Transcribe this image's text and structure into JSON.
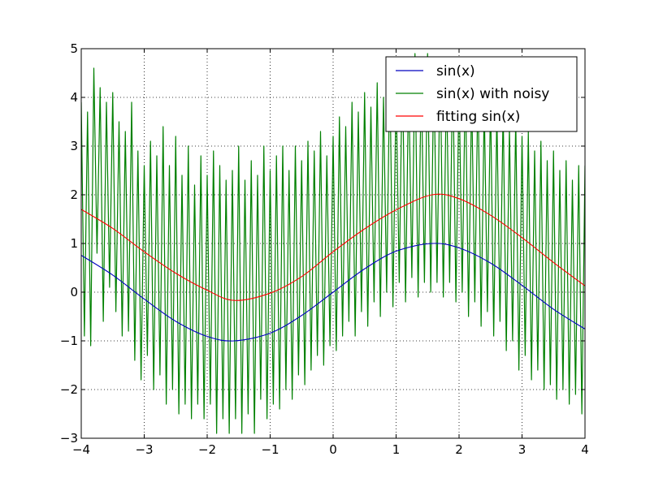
{
  "chart_data": {
    "type": "line",
    "title": "",
    "xlabel": "",
    "ylabel": "",
    "xlim": [
      -4,
      4
    ],
    "ylim": [
      -3,
      5
    ],
    "grid": true,
    "x_ticks": [
      -4,
      -3,
      -2,
      -1,
      0,
      1,
      2,
      3,
      4
    ],
    "y_ticks": [
      -3,
      -2,
      -1,
      0,
      1,
      2,
      3,
      4,
      5
    ],
    "x_tick_labels": [
      "−4",
      "−3",
      "−2",
      "−1",
      "0",
      "1",
      "2",
      "3",
      "4"
    ],
    "y_tick_labels": [
      "−3",
      "−2",
      "−1",
      "0",
      "1",
      "2",
      "3",
      "4",
      "5"
    ],
    "legend_position": "top-right",
    "series": [
      {
        "name": "sin(x)",
        "color": "#0000bf",
        "style": "smooth",
        "points": [
          [
            -4.0,
            0.757
          ],
          [
            -3.5,
            0.351
          ],
          [
            -3.0,
            -0.141
          ],
          [
            -2.5,
            -0.598
          ],
          [
            -2.0,
            -0.909
          ],
          [
            -1.57,
            -1.0
          ],
          [
            -1.0,
            -0.841
          ],
          [
            -0.5,
            -0.479
          ],
          [
            0.0,
            0.0
          ],
          [
            0.5,
            0.479
          ],
          [
            1.0,
            0.841
          ],
          [
            1.57,
            1.0
          ],
          [
            2.0,
            0.909
          ],
          [
            2.5,
            0.598
          ],
          [
            3.0,
            0.141
          ],
          [
            3.5,
            -0.351
          ],
          [
            4.0,
            -0.757
          ]
        ]
      },
      {
        "name": "sin(x) with noisy",
        "color": "#008000",
        "style": "noisy",
        "points": [
          [
            -4.0,
            3.9
          ],
          [
            -3.95,
            -0.9
          ],
          [
            -3.9,
            3.7
          ],
          [
            -3.85,
            -1.1
          ],
          [
            -3.8,
            4.6
          ],
          [
            -3.75,
            0.8
          ],
          [
            -3.7,
            4.2
          ],
          [
            -3.65,
            -0.6
          ],
          [
            -3.6,
            3.9
          ],
          [
            -3.55,
            0.1
          ],
          [
            -3.5,
            4.1
          ],
          [
            -3.45,
            -0.4
          ],
          [
            -3.4,
            3.5
          ],
          [
            -3.35,
            -0.9
          ],
          [
            -3.3,
            3.3
          ],
          [
            -3.25,
            -0.8
          ],
          [
            -3.2,
            3.9
          ],
          [
            -3.15,
            -1.4
          ],
          [
            -3.1,
            2.9
          ],
          [
            -3.05,
            -1.8
          ],
          [
            -3.0,
            2.6
          ],
          [
            -2.95,
            -1.3
          ],
          [
            -2.9,
            3.1
          ],
          [
            -2.85,
            -2.0
          ],
          [
            -2.8,
            2.8
          ],
          [
            -2.75,
            -1.7
          ],
          [
            -2.7,
            3.4
          ],
          [
            -2.65,
            -2.3
          ],
          [
            -2.6,
            2.6
          ],
          [
            -2.55,
            -2.0
          ],
          [
            -2.5,
            3.2
          ],
          [
            -2.45,
            -2.5
          ],
          [
            -2.4,
            2.4
          ],
          [
            -2.35,
            -2.3
          ],
          [
            -2.3,
            3.0
          ],
          [
            -2.25,
            -2.6
          ],
          [
            -2.2,
            2.2
          ],
          [
            -2.15,
            -2.3
          ],
          [
            -2.1,
            2.8
          ],
          [
            -2.05,
            -2.6
          ],
          [
            -2.0,
            2.4
          ],
          [
            -1.95,
            -2.3
          ],
          [
            -1.9,
            2.9
          ],
          [
            -1.85,
            -2.9
          ],
          [
            -1.8,
            2.6
          ],
          [
            -1.75,
            -2.6
          ],
          [
            -1.7,
            2.3
          ],
          [
            -1.65,
            -2.9
          ],
          [
            -1.6,
            2.5
          ],
          [
            -1.55,
            -2.6
          ],
          [
            -1.5,
            3.0
          ],
          [
            -1.45,
            -2.9
          ],
          [
            -1.4,
            2.3
          ],
          [
            -1.35,
            -2.5
          ],
          [
            -1.3,
            2.7
          ],
          [
            -1.25,
            -2.9
          ],
          [
            -1.2,
            2.4
          ],
          [
            -1.15,
            -2.2
          ],
          [
            -1.1,
            3.0
          ],
          [
            -1.05,
            -2.6
          ],
          [
            -1.0,
            2.5
          ],
          [
            -0.95,
            -2.3
          ],
          [
            -0.9,
            2.8
          ],
          [
            -0.85,
            -2.4
          ],
          [
            -0.8,
            3.0
          ],
          [
            -0.75,
            -2.0
          ],
          [
            -0.7,
            2.5
          ],
          [
            -0.65,
            -2.2
          ],
          [
            -0.6,
            3.0
          ],
          [
            -0.55,
            -1.7
          ],
          [
            -0.5,
            2.7
          ],
          [
            -0.45,
            -1.9
          ],
          [
            -0.4,
            3.1
          ],
          [
            -0.35,
            -1.6
          ],
          [
            -0.3,
            2.9
          ],
          [
            -0.25,
            -1.3
          ],
          [
            -0.2,
            3.3
          ],
          [
            -0.15,
            -1.5
          ],
          [
            -0.1,
            2.8
          ],
          [
            -0.05,
            -1.1
          ],
          [
            0.0,
            3.2
          ],
          [
            0.05,
            -1.2
          ],
          [
            0.1,
            3.6
          ],
          [
            0.15,
            -0.9
          ],
          [
            0.2,
            3.4
          ],
          [
            0.25,
            -0.6
          ],
          [
            0.3,
            3.9
          ],
          [
            0.35,
            -0.9
          ],
          [
            0.4,
            3.7
          ],
          [
            0.45,
            -0.4
          ],
          [
            0.5,
            4.1
          ],
          [
            0.55,
            -0.7
          ],
          [
            0.6,
            3.8
          ],
          [
            0.65,
            -0.2
          ],
          [
            0.7,
            4.3
          ],
          [
            0.75,
            -0.5
          ],
          [
            0.8,
            4.0
          ],
          [
            0.85,
            0.0
          ],
          [
            0.9,
            4.6
          ],
          [
            0.95,
            -0.3
          ],
          [
            1.0,
            4.2
          ],
          [
            1.05,
            0.2
          ],
          [
            1.1,
            4.8
          ],
          [
            1.15,
            -0.2
          ],
          [
            1.2,
            4.4
          ],
          [
            1.25,
            0.3
          ],
          [
            1.3,
            4.9
          ],
          [
            1.35,
            -0.1
          ],
          [
            1.4,
            4.5
          ],
          [
            1.45,
            0.2
          ],
          [
            1.5,
            4.9
          ],
          [
            1.55,
            0.0
          ],
          [
            1.6,
            4.6
          ],
          [
            1.65,
            0.2
          ],
          [
            1.7,
            4.8
          ],
          [
            1.75,
            -0.1
          ],
          [
            1.8,
            4.4
          ],
          [
            1.85,
            0.2
          ],
          [
            1.9,
            4.7
          ],
          [
            1.95,
            -0.2
          ],
          [
            2.0,
            4.3
          ],
          [
            2.05,
            0.0
          ],
          [
            2.1,
            4.5
          ],
          [
            2.15,
            -0.5
          ],
          [
            2.2,
            4.1
          ],
          [
            2.25,
            -0.2
          ],
          [
            2.3,
            4.3
          ],
          [
            2.35,
            -0.7
          ],
          [
            2.4,
            3.9
          ],
          [
            2.45,
            -0.4
          ],
          [
            2.5,
            4.0
          ],
          [
            2.55,
            -0.9
          ],
          [
            2.6,
            3.7
          ],
          [
            2.65,
            -0.6
          ],
          [
            2.7,
            3.8
          ],
          [
            2.75,
            -1.2
          ],
          [
            2.8,
            3.4
          ],
          [
            2.85,
            -1.0
          ],
          [
            2.9,
            3.6
          ],
          [
            2.95,
            -1.6
          ],
          [
            3.0,
            3.2
          ],
          [
            3.05,
            -1.3
          ],
          [
            3.1,
            3.3
          ],
          [
            3.15,
            -1.8
          ],
          [
            3.2,
            2.9
          ],
          [
            3.25,
            -1.6
          ],
          [
            3.3,
            3.1
          ],
          [
            3.35,
            -2.0
          ],
          [
            3.4,
            2.7
          ],
          [
            3.45,
            -1.9
          ],
          [
            3.5,
            2.9
          ],
          [
            3.55,
            -2.2
          ],
          [
            3.6,
            2.5
          ],
          [
            3.65,
            -2.0
          ],
          [
            3.7,
            2.7
          ],
          [
            3.75,
            -2.3
          ],
          [
            3.8,
            2.3
          ],
          [
            3.85,
            -2.1
          ],
          [
            3.9,
            2.6
          ],
          [
            3.95,
            -2.5
          ],
          [
            4.0,
            2.6
          ]
        ]
      },
      {
        "name": "fitting sin(x)",
        "color": "#ff0000",
        "style": "smooth",
        "points": [
          [
            -4.0,
            1.7
          ],
          [
            -3.5,
            1.31
          ],
          [
            -3.0,
            0.83
          ],
          [
            -2.5,
            0.39
          ],
          [
            -2.0,
            0.04
          ],
          [
            -1.57,
            -0.17
          ],
          [
            -1.0,
            -0.02
          ],
          [
            -0.5,
            0.32
          ],
          [
            0.0,
            0.83
          ],
          [
            0.5,
            1.3
          ],
          [
            1.0,
            1.69
          ],
          [
            1.57,
            2.0
          ],
          [
            2.0,
            1.92
          ],
          [
            2.5,
            1.58
          ],
          [
            3.0,
            1.12
          ],
          [
            3.5,
            0.61
          ],
          [
            4.0,
            0.13
          ]
        ]
      }
    ]
  }
}
